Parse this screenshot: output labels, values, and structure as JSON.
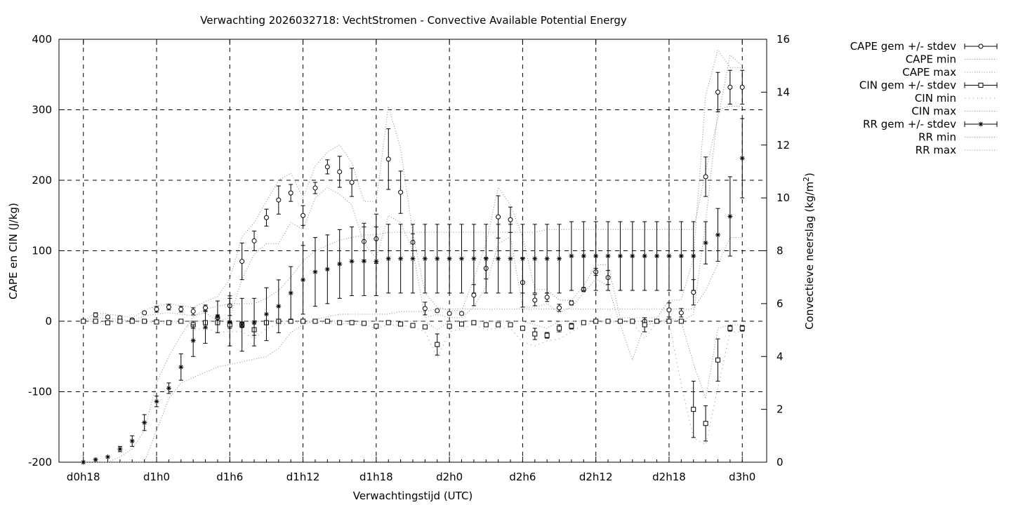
{
  "chart_data": {
    "type": "line",
    "title": "Verwachting 2026032718: VechtStromen - Convective Available Potential Energy",
    "xlabel": "Verwachtingstijd (UTC)",
    "ylabel": "CAPE en CIN (J/kg)",
    "y2label": "Convectieve neerslag (kg/m²)",
    "y2label_main": "Convectieve neerslag (kg/m",
    "y2label_sup": "2",
    "y2label_tail": ")",
    "x_unit": "hours since d0h18",
    "xlim": [
      -2,
      56
    ],
    "ylim": [
      -200,
      400
    ],
    "y2lim": [
      0,
      16
    ],
    "grid": true,
    "legend_position": "outside-right",
    "x_ticks": [
      {
        "x": 0,
        "label": "d0h18"
      },
      {
        "x": 6,
        "label": "d1h0"
      },
      {
        "x": 12,
        "label": "d1h6"
      },
      {
        "x": 18,
        "label": "d1h12"
      },
      {
        "x": 24,
        "label": "d1h18"
      },
      {
        "x": 30,
        "label": "d2h0"
      },
      {
        "x": 36,
        "label": "d2h6"
      },
      {
        "x": 42,
        "label": "d2h12"
      },
      {
        "x": 48,
        "label": "d2h18"
      },
      {
        "x": 54,
        "label": "d3h0"
      }
    ],
    "y_ticks": [
      {
        "v": -200,
        "label": "-200"
      },
      {
        "v": -100,
        "label": "-100"
      },
      {
        "v": 0,
        "label": "0"
      },
      {
        "v": 100,
        "label": "100"
      },
      {
        "v": 200,
        "label": "200"
      },
      {
        "v": 300,
        "label": "300"
      },
      {
        "v": 400,
        "label": "400"
      }
    ],
    "y2_ticks": [
      {
        "v": 0,
        "label": "0"
      },
      {
        "v": 2,
        "label": "2"
      },
      {
        "v": 4,
        "label": "4"
      },
      {
        "v": 6,
        "label": "6"
      },
      {
        "v": 8,
        "label": "8"
      },
      {
        "v": 10,
        "label": "10"
      },
      {
        "v": 12,
        "label": "12"
      },
      {
        "v": 14,
        "label": "14"
      },
      {
        "v": 16,
        "label": "16"
      }
    ],
    "legend": [
      {
        "label": "CAPE gem +/- stdev",
        "style": "errorbar",
        "marker": "circle"
      },
      {
        "label": "CAPE min",
        "style": "dotted"
      },
      {
        "label": "CAPE max",
        "style": "dotted"
      },
      {
        "label": "CIN gem +/- stdev",
        "style": "errorbar",
        "marker": "square"
      },
      {
        "label": "CIN min",
        "style": "dotted-sparse"
      },
      {
        "label": "CIN max",
        "style": "dotted"
      },
      {
        "label": "RR gem +/- stdev",
        "style": "errorbar",
        "marker": "star"
      },
      {
        "label": "RR min",
        "style": "dotted"
      },
      {
        "label": "RR max",
        "style": "dotted"
      }
    ],
    "x": [
      0,
      1,
      2,
      3,
      4,
      5,
      6,
      7,
      8,
      9,
      10,
      11,
      12,
      13,
      14,
      15,
      16,
      17,
      18,
      19,
      20,
      21,
      22,
      23,
      24,
      25,
      26,
      27,
      28,
      29,
      30,
      31,
      32,
      33,
      34,
      35,
      36,
      37,
      38,
      39,
      40,
      41,
      42,
      43,
      44,
      45,
      46,
      47,
      48,
      49,
      50,
      51,
      52,
      53,
      54
    ],
    "series": [
      {
        "name": "CAPE gem +/- stdev",
        "axis": "y",
        "marker": "circle",
        "mean": [
          0,
          9,
          6,
          5,
          2,
          12,
          17,
          20,
          17,
          14,
          19,
          5,
          22,
          85,
          114,
          147,
          172,
          182,
          150,
          189,
          219,
          212,
          197,
          113,
          117,
          230,
          183,
          112,
          18,
          15,
          11,
          11,
          37,
          75,
          148,
          144,
          55,
          30,
          34,
          19,
          26,
          45,
          70,
          62,
          0,
          0,
          0,
          0,
          16,
          12,
          41,
          205,
          325,
          332,
          332
        ],
        "sd": [
          0,
          3,
          2,
          2,
          2,
          2,
          4,
          4,
          4,
          5,
          4,
          4,
          14,
          26,
          14,
          12,
          20,
          12,
          14,
          8,
          10,
          22,
          20,
          26,
          35,
          43,
          30,
          12,
          9,
          2,
          2,
          2,
          15,
          15,
          30,
          18,
          35,
          8,
          6,
          5,
          3,
          3,
          5,
          10,
          3,
          0,
          0,
          0,
          10,
          6,
          18,
          28,
          28,
          24,
          24
        ]
      },
      {
        "name": "CIN gem +/- stdev",
        "axis": "y",
        "marker": "square",
        "mean": [
          0,
          0,
          -2,
          0,
          0,
          0,
          -1,
          -2,
          0,
          -5,
          -2,
          -2,
          -5,
          -5,
          -12,
          -2,
          0,
          0,
          0,
          0,
          0,
          -2,
          -2,
          -3,
          -7,
          -2,
          -4,
          -6,
          -8,
          -33,
          -7,
          -4,
          -2,
          -5,
          -5,
          -5,
          -10,
          -18,
          -20,
          -10,
          -7,
          -2,
          0,
          0,
          0,
          0,
          -5,
          0,
          0,
          0,
          -125,
          -145,
          -55,
          -10,
          -10
        ],
        "sd": [
          0,
          0,
          1,
          0,
          0,
          0,
          1,
          1,
          0,
          5,
          2,
          2,
          5,
          4,
          8,
          2,
          0,
          0,
          0,
          0,
          0,
          1,
          1,
          1,
          2,
          1,
          1,
          1,
          2,
          15,
          3,
          2,
          1,
          2,
          2,
          2,
          3,
          8,
          4,
          5,
          4,
          1,
          0,
          0,
          0,
          0,
          10,
          0,
          0,
          0,
          40,
          25,
          30,
          4,
          4
        ]
      },
      {
        "name": "RR gem +/- stdev",
        "axis": "y2",
        "marker": "star",
        "mean": [
          0,
          0.1,
          0.2,
          0.5,
          0.8,
          1.5,
          2.3,
          2.8,
          3.6,
          4.6,
          5.1,
          5.5,
          5.3,
          5.2,
          5.3,
          5.6,
          5.9,
          6.4,
          6.9,
          7.2,
          7.3,
          7.5,
          7.6,
          7.6,
          7.6,
          7.7,
          7.7,
          7.7,
          7.7,
          7.7,
          7.7,
          7.7,
          7.7,
          7.7,
          7.7,
          7.7,
          7.7,
          7.7,
          7.7,
          7.7,
          7.8,
          7.8,
          7.8,
          7.8,
          7.8,
          7.8,
          7.8,
          7.8,
          7.8,
          7.8,
          7.8,
          8.3,
          8.6,
          9.3,
          11.5
        ],
        "sd": [
          0,
          0,
          0,
          0.1,
          0.2,
          0.3,
          0.2,
          0.2,
          0.5,
          0.6,
          0.6,
          0.6,
          0.9,
          1.0,
          0.9,
          1.0,
          1.0,
          1.0,
          1.3,
          1.3,
          1.3,
          1.3,
          1.3,
          1.3,
          1.3,
          1.3,
          1.3,
          1.3,
          1.3,
          1.3,
          1.3,
          1.3,
          1.3,
          1.3,
          1.3,
          1.3,
          1.3,
          1.3,
          1.3,
          1.3,
          1.3,
          1.3,
          1.3,
          1.3,
          1.3,
          1.3,
          1.3,
          1.3,
          1.3,
          1.3,
          1.3,
          0.8,
          1.0,
          1.5,
          1.5
        ]
      },
      {
        "name": "CAPE min",
        "axis": "y",
        "values": [
          0,
          5,
          4,
          3,
          0,
          8,
          10,
          12,
          10,
          8,
          12,
          0,
          5,
          60,
          95,
          110,
          110,
          140,
          130,
          175,
          190,
          180,
          165,
          110,
          90,
          150,
          140,
          100,
          5,
          10,
          5,
          5,
          20,
          50,
          110,
          120,
          20,
          20,
          25,
          12,
          20,
          40,
          60,
          50,
          -5,
          -55,
          -5,
          -3,
          5,
          0,
          10,
          140,
          300,
          305,
          305
        ]
      },
      {
        "name": "CAPE max",
        "axis": "y",
        "values": [
          0,
          12,
          10,
          8,
          5,
          15,
          22,
          25,
          22,
          20,
          28,
          35,
          60,
          120,
          140,
          170,
          200,
          210,
          175,
          220,
          240,
          250,
          225,
          170,
          170,
          305,
          245,
          125,
          40,
          20,
          15,
          15,
          60,
          110,
          190,
          165,
          120,
          45,
          45,
          30,
          30,
          50,
          80,
          80,
          5,
          5,
          5,
          5,
          30,
          30,
          90,
          320,
          385,
          360,
          360
        ]
      },
      {
        "name": "CIN min",
        "axis": "y",
        "values": [
          0,
          -1,
          -3,
          -1,
          -1,
          -1,
          -2,
          -3,
          -1,
          -12,
          -10,
          -15,
          -15,
          -15,
          -25,
          -10,
          -5,
          -2,
          -2,
          -2,
          -2,
          -3,
          -4,
          -5,
          -10,
          -5,
          -6,
          -8,
          -15,
          -52,
          -15,
          -10,
          -5,
          -12,
          -10,
          -10,
          -30,
          -35,
          -28,
          -25,
          -15,
          -5,
          -1,
          -1,
          -1,
          -1,
          -25,
          -1,
          -1,
          -90,
          -165,
          -175,
          -95,
          -15,
          -15
        ]
      },
      {
        "name": "CIN max",
        "axis": "y",
        "values": [
          0,
          0,
          0,
          0,
          0,
          0,
          0,
          0,
          0,
          0,
          0,
          0,
          0,
          0,
          0,
          0,
          0,
          0,
          0,
          0,
          0,
          0,
          0,
          0,
          0,
          0,
          0,
          0,
          0,
          -12,
          0,
          0,
          0,
          0,
          0,
          0,
          0,
          -5,
          -10,
          0,
          0,
          0,
          0,
          0,
          0,
          0,
          0,
          0,
          0,
          0,
          -60,
          -110,
          -10,
          -5,
          -5
        ]
      },
      {
        "name": "RR min",
        "axis": "y2",
        "values": [
          0,
          0,
          0,
          0,
          0,
          0,
          1.2,
          2.4,
          3.0,
          3.2,
          3.4,
          3.6,
          3.7,
          3.8,
          3.9,
          4.0,
          4.3,
          4.9,
          5.2,
          5.4,
          5.5,
          5.6,
          5.6,
          5.6,
          5.6,
          5.6,
          5.7,
          5.7,
          5.7,
          5.8,
          5.8,
          5.8,
          5.8,
          5.8,
          5.8,
          5.8,
          5.8,
          5.8,
          5.8,
          5.8,
          5.8,
          5.8,
          5.8,
          5.8,
          5.8,
          5.8,
          5.8,
          5.8,
          5.8,
          5.8,
          5.8,
          6.5,
          7.5,
          8.5,
          8.5
        ]
      },
      {
        "name": "RR max",
        "axis": "y2",
        "values": [
          0,
          0,
          0,
          0.2,
          0.5,
          1.2,
          3.0,
          4.0,
          4.8,
          5.5,
          5.8,
          5.9,
          6.0,
          6.0,
          6.0,
          6.2,
          6.5,
          7.0,
          7.6,
          8.0,
          8.2,
          8.4,
          8.5,
          8.6,
          8.6,
          8.7,
          8.7,
          8.7,
          8.7,
          8.7,
          8.7,
          8.7,
          8.7,
          8.7,
          8.7,
          8.7,
          8.7,
          8.7,
          8.8,
          8.8,
          8.8,
          8.8,
          8.8,
          8.8,
          8.8,
          8.8,
          8.8,
          8.8,
          8.8,
          8.8,
          8.8,
          11.0,
          13.0,
          15.4,
          15.0
        ]
      }
    ]
  }
}
